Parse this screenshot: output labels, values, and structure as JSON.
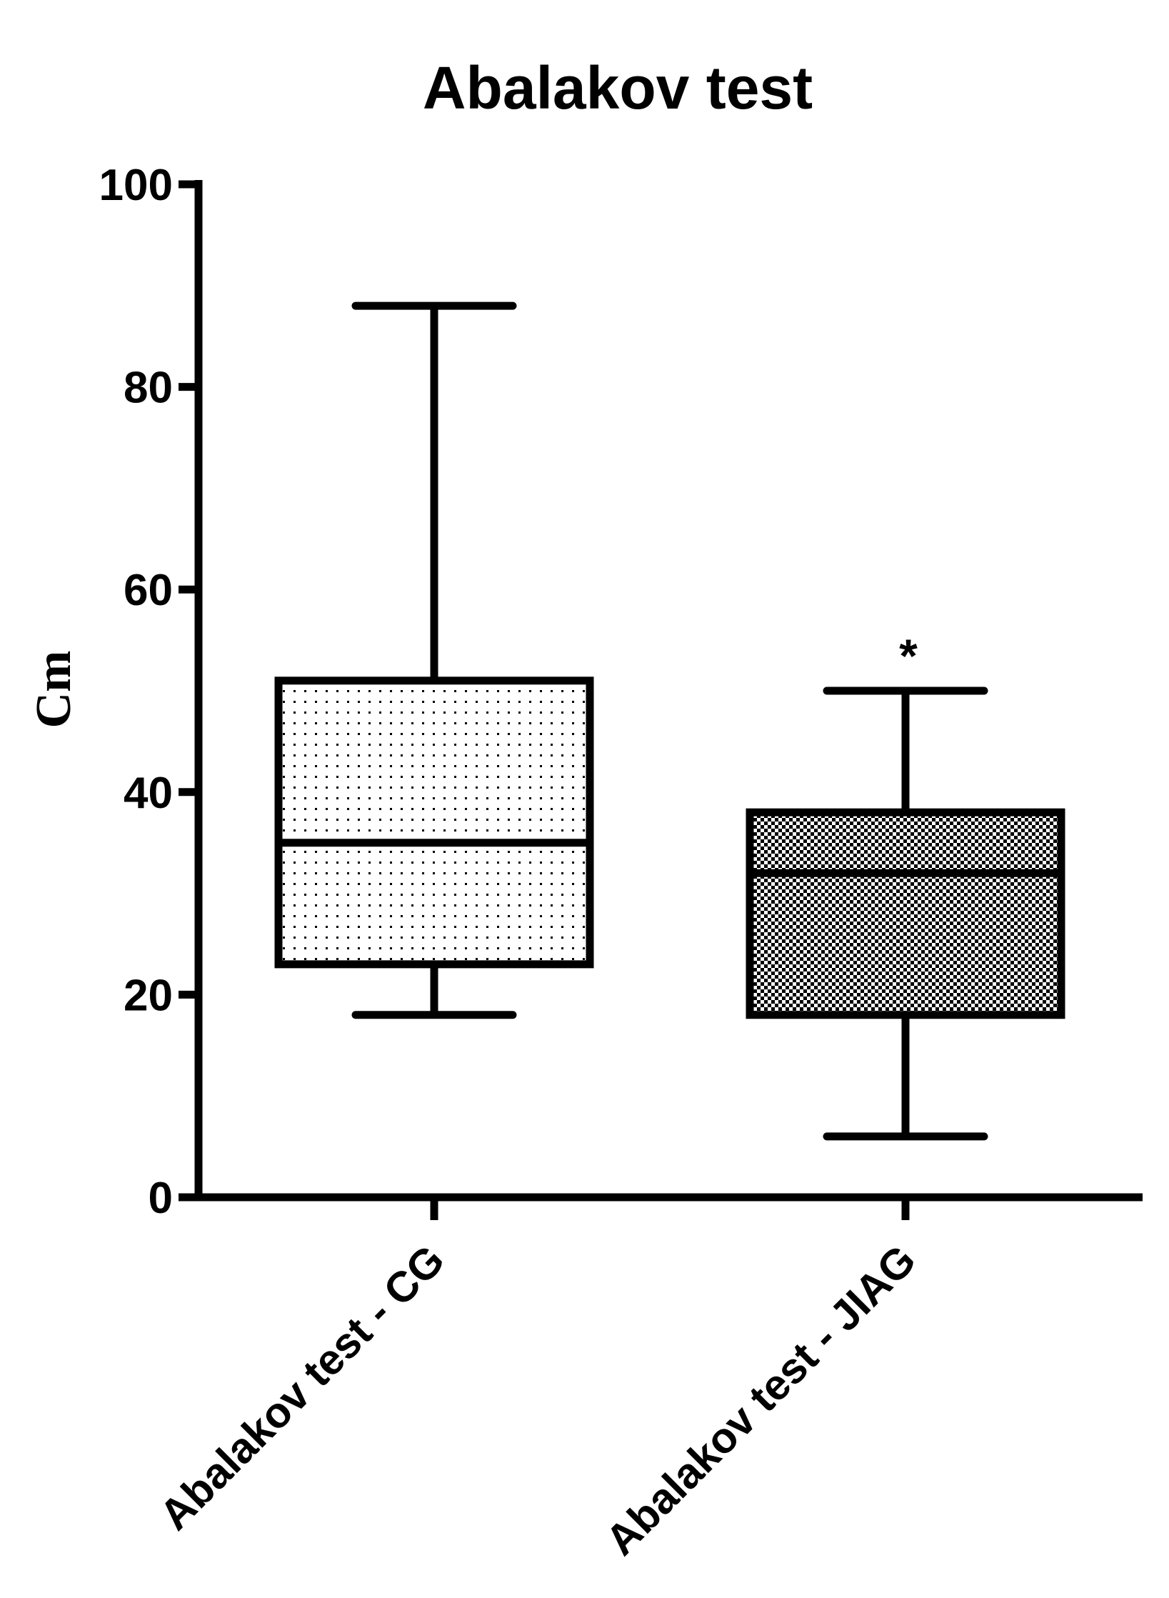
{
  "chart_data": {
    "type": "box",
    "title": "Abalakov test",
    "ylabel": "Cm",
    "xlabel": "",
    "ylim": [
      0,
      100
    ],
    "yticks": [
      0,
      20,
      40,
      60,
      80,
      100
    ],
    "yticklabels": [
      "0",
      "20",
      "40",
      "60",
      "80",
      "100"
    ],
    "grid": false,
    "categories": [
      "Abalakov test - CG",
      "Abalakov test - JIAG"
    ],
    "boxes": [
      {
        "min": 18,
        "q1": 23,
        "median": 35,
        "q3": 51,
        "max": 88,
        "fill": "dotted-light",
        "annotation": ""
      },
      {
        "min": 6,
        "q1": 18,
        "median": 32,
        "q3": 38,
        "max": 50,
        "fill": "checkered-dark",
        "annotation": "*"
      }
    ]
  }
}
